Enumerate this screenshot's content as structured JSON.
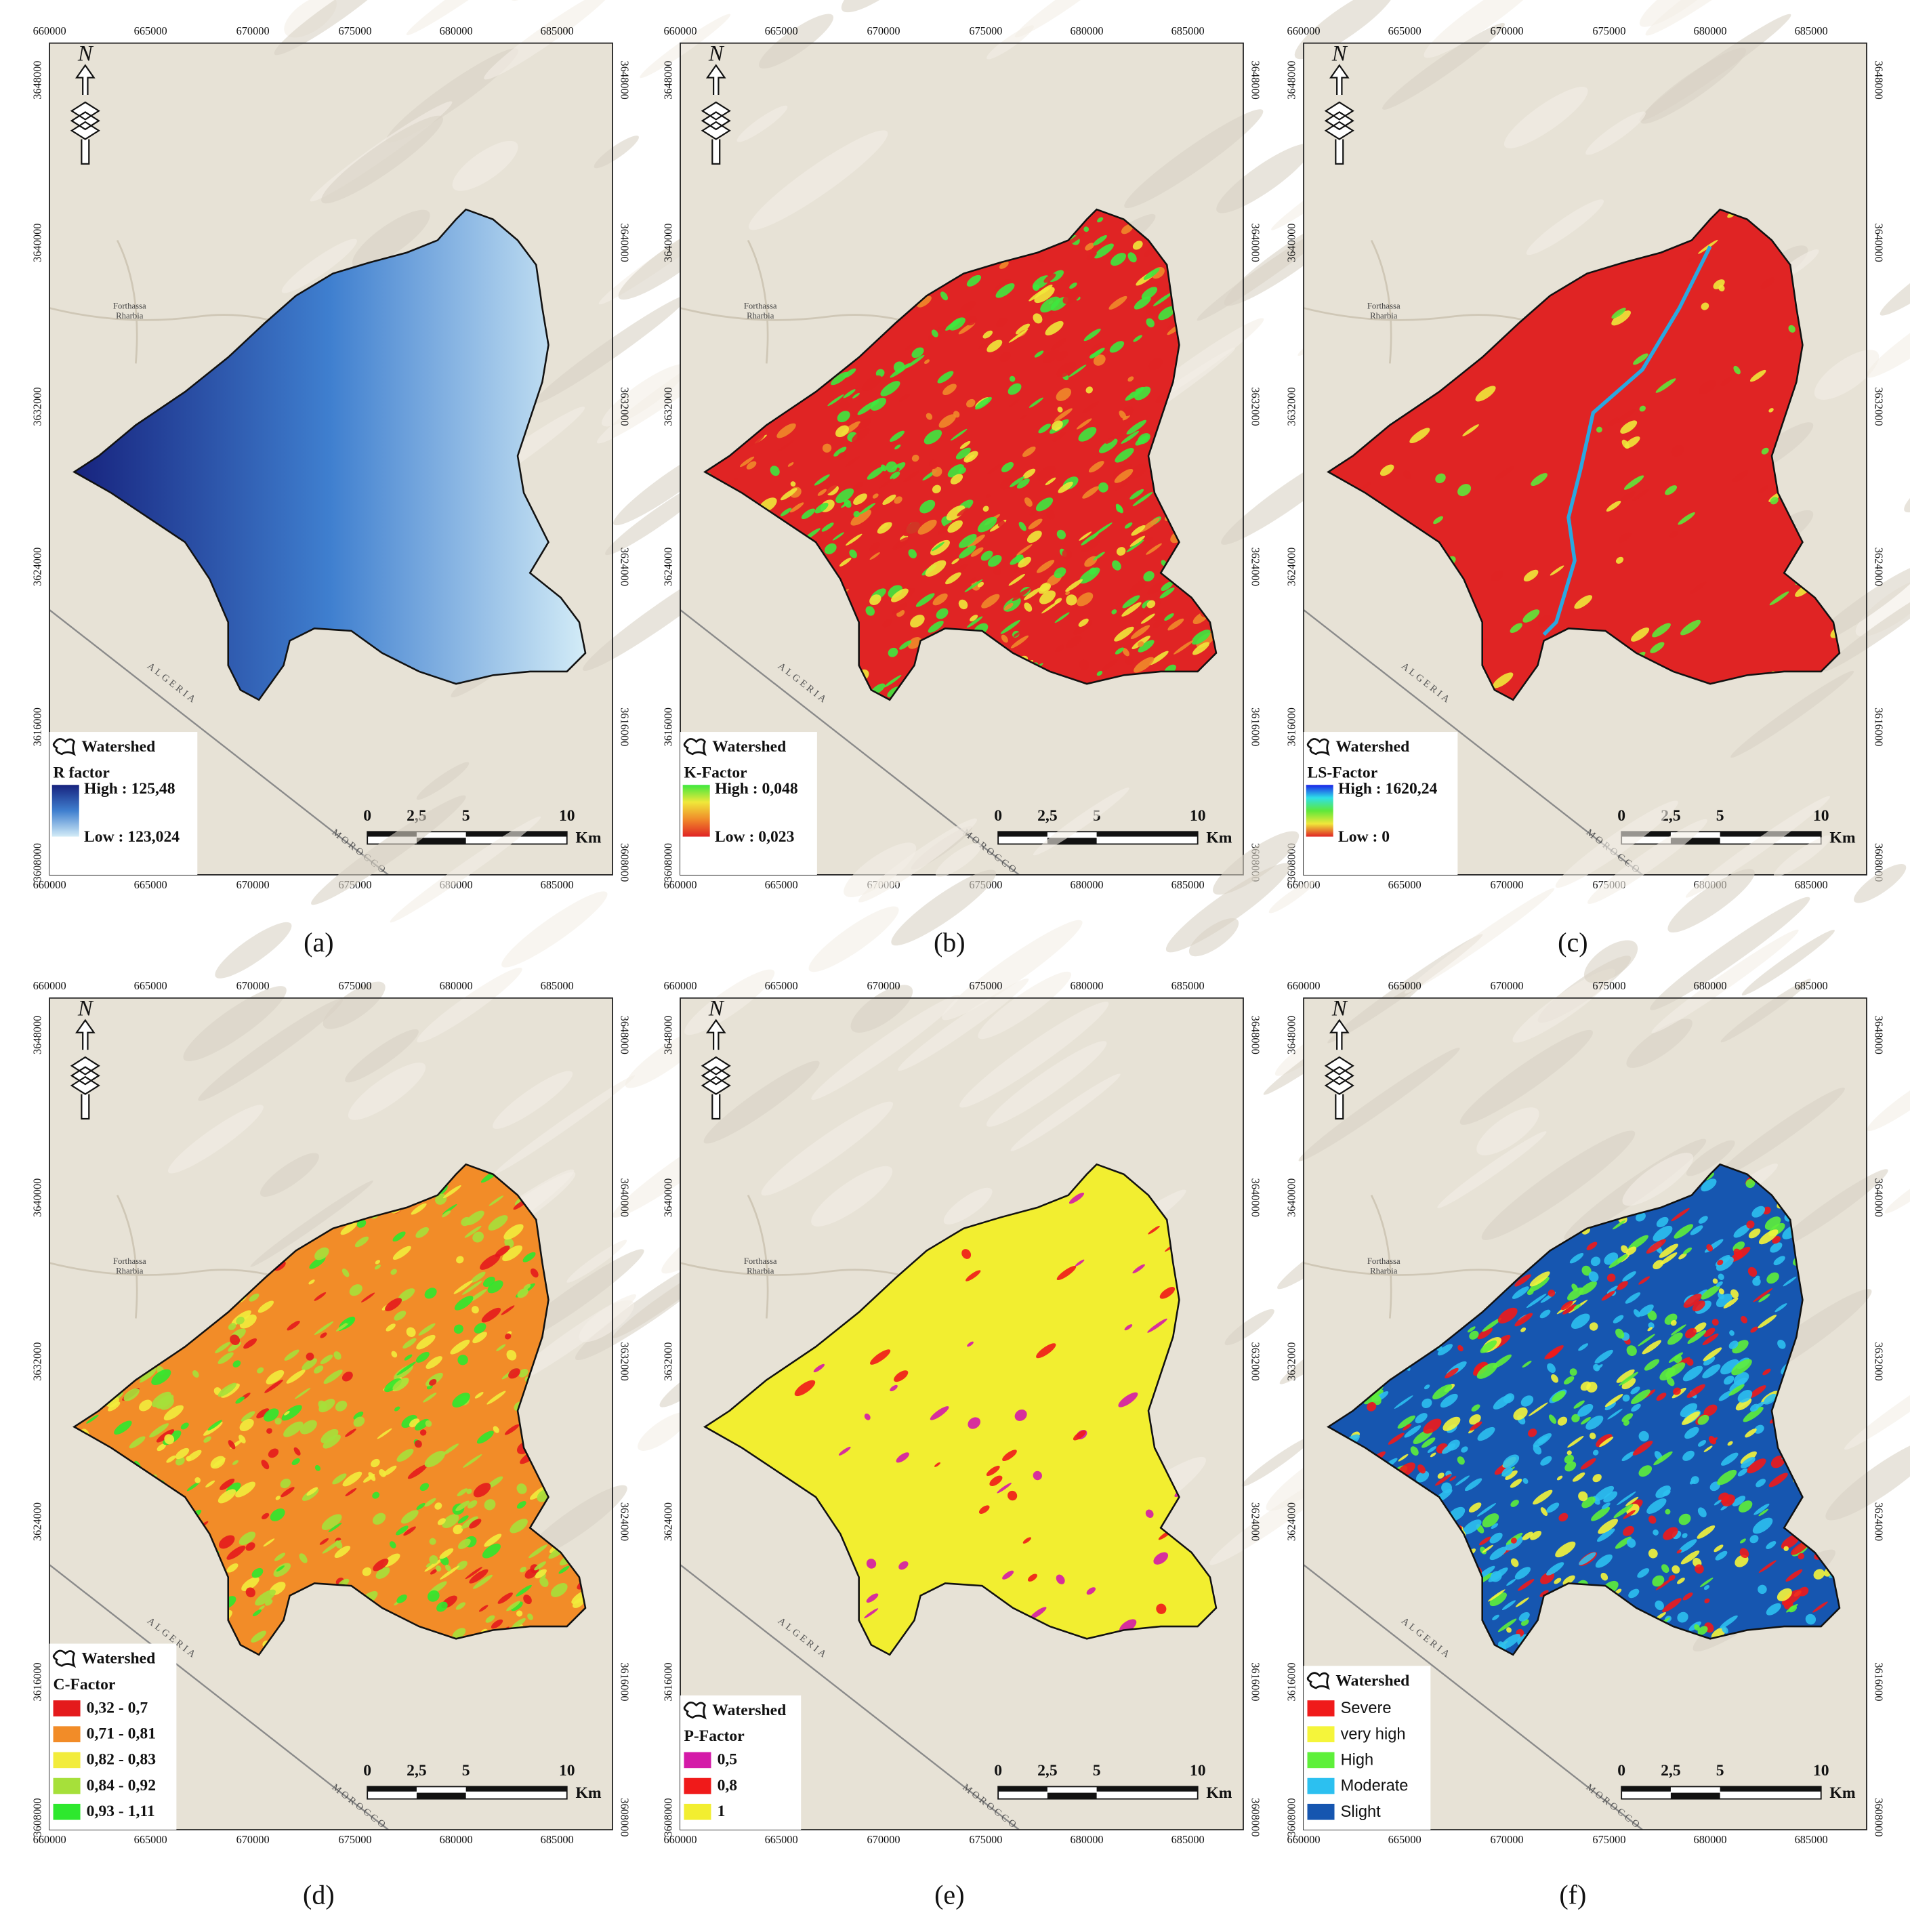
{
  "x_ticks": [
    "660000",
    "665000",
    "670000",
    "675000",
    "680000",
    "685000"
  ],
  "y_ticks": [
    "3648000",
    "3640000",
    "3632000",
    "3624000",
    "3616000",
    "3608000"
  ],
  "north": "N",
  "place": [
    "Forthassa",
    "Rharbia"
  ],
  "countries": [
    "ALGERIA",
    "MOROCCO"
  ],
  "scale_bar": {
    "labels": [
      "0",
      "2,5",
      "5",
      "10"
    ],
    "unit": "Km"
  },
  "panels": [
    {
      "caption": "(a)",
      "legend": {
        "layer": "Watershed",
        "title": "R factor",
        "kind": "gradient",
        "high": "High : 125,48",
        "low": "Low : 123,024",
        "colors": [
          "#17237e",
          "#3f7fcf",
          "#d3ecf7"
        ]
      }
    },
    {
      "caption": "(b)",
      "legend": {
        "layer": "Watershed",
        "title": "K-Factor",
        "kind": "gradient",
        "high": "High : 0,048",
        "low": "Low : 0,023",
        "colors": [
          "#3ee83e",
          "#f0e83a",
          "#f08a2a",
          "#e02424"
        ]
      }
    },
    {
      "caption": "(c)",
      "legend": {
        "layer": "Watershed",
        "title": "LS-Factor",
        "kind": "gradient",
        "high": "High : 1620,24",
        "low": "Low : 0",
        "colors": [
          "#1a24e8",
          "#2ee0e8",
          "#5ee83a",
          "#f0e83a",
          "#e02424"
        ]
      }
    },
    {
      "caption": "(d)",
      "legend": {
        "layer": "Watershed",
        "title": "C-Factor",
        "kind": "classes",
        "entries": [
          {
            "label": "0,32 - 0,7",
            "color": "#e41a1c"
          },
          {
            "label": "0,71 - 0,81",
            "color": "#f28c28"
          },
          {
            "label": "0,82 - 0,83",
            "color": "#f2ec3c"
          },
          {
            "label": "0,84 - 0,92",
            "color": "#a6e03a"
          },
          {
            "label": "0,93 - 1,11",
            "color": "#2ee82e"
          }
        ]
      }
    },
    {
      "caption": "(e)",
      "legend": {
        "layer": "Watershed",
        "title": "P-Factor",
        "kind": "classes",
        "entries": [
          {
            "label": "0,5",
            "color": "#d41aa8"
          },
          {
            "label": "0,8",
            "color": "#f01a1a"
          },
          {
            "label": "1",
            "color": "#f2ee30"
          }
        ]
      }
    },
    {
      "caption": "(f)",
      "legend": {
        "layer": "Watershed",
        "kind": "classes",
        "entries": [
          {
            "label": "Severe",
            "color": "#f01a1a"
          },
          {
            "label": "very high",
            "color": "#f5f53a"
          },
          {
            "label": "High",
            "color": "#5ef03a"
          },
          {
            "label": "Moderate",
            "color": "#2cc0f0"
          },
          {
            "label": "Slight",
            "color": "#1656b0"
          }
        ]
      }
    }
  ]
}
